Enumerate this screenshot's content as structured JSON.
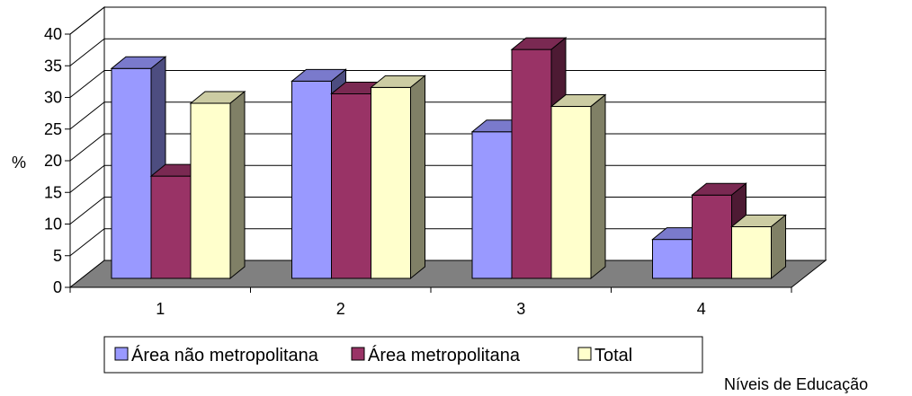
{
  "chart_data": {
    "type": "bar",
    "categories": [
      "1",
      "2",
      "3",
      "4"
    ],
    "series": [
      {
        "name": "Área não metropolitana",
        "values": [
          35,
          33,
          25,
          8
        ],
        "color": "#9999ff"
      },
      {
        "name": "Área metropolitana",
        "values": [
          18,
          31,
          38,
          15
        ],
        "color": "#993366"
      },
      {
        "name": "Total",
        "values": [
          29.5,
          32,
          29,
          10
        ],
        "color": "#ffffcc"
      }
    ],
    "ylim": [
      0,
      40
    ],
    "yticks": [
      "0",
      "5",
      "10",
      "15",
      "20",
      "25",
      "30",
      "35",
      "40"
    ],
    "ylabel": "%",
    "xlabel": "Níveis de Educação",
    "grid": true,
    "legend": "bottom",
    "three_d": true,
    "floor_color": "#808080"
  }
}
